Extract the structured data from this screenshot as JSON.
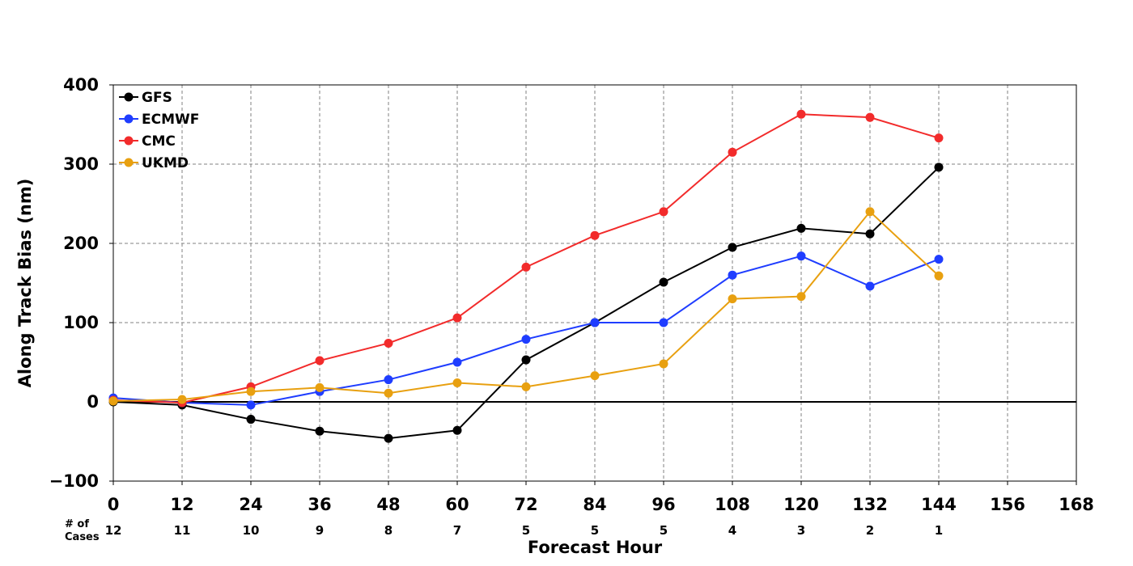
{
  "chart_data": {
    "type": "line",
    "xlabel": "Forecast Hour",
    "ylabel": "Along Track Bias (nm)",
    "xlim": [
      0,
      168
    ],
    "ylim": [
      -100,
      400
    ],
    "x_ticks": [
      0,
      12,
      24,
      36,
      48,
      60,
      72,
      84,
      96,
      108,
      120,
      132,
      144,
      156,
      168
    ],
    "y_ticks": [
      -100,
      0,
      100,
      200,
      300,
      400
    ],
    "y_tick_labels": [
      "−100",
      "0",
      "100",
      "200",
      "300",
      "400"
    ],
    "grid": true,
    "legend_position": "top-left",
    "x": [
      0,
      12,
      24,
      36,
      48,
      60,
      72,
      84,
      96,
      108,
      120,
      132,
      144
    ],
    "series": [
      {
        "name": "GFS",
        "color": "#000000",
        "values": [
          0,
          -4,
          -22,
          -37,
          -46,
          -36,
          53,
          100,
          151,
          195,
          219,
          212,
          296
        ]
      },
      {
        "name": "ECMWF",
        "color": "#1f3dff",
        "values": [
          5,
          -1,
          -4,
          13,
          28,
          50,
          79,
          100,
          100,
          160,
          184,
          146,
          180
        ]
      },
      {
        "name": "CMC",
        "color": "#f22b2b",
        "values": [
          2,
          -1,
          19,
          52,
          74,
          106,
          170,
          210,
          240,
          315,
          363,
          359,
          333
        ]
      },
      {
        "name": "UKMD",
        "color": "#e8a010",
        "values": [
          1,
          3,
          13,
          18,
          11,
          24,
          19,
          33,
          48,
          130,
          133,
          240,
          159
        ]
      }
    ],
    "cases_label_line1": "# of",
    "cases_label_line2": "Cases",
    "cases": [
      "12",
      "11",
      "10",
      "9",
      "8",
      "7",
      "5",
      "5",
      "5",
      "4",
      "3",
      "2",
      "1"
    ]
  }
}
